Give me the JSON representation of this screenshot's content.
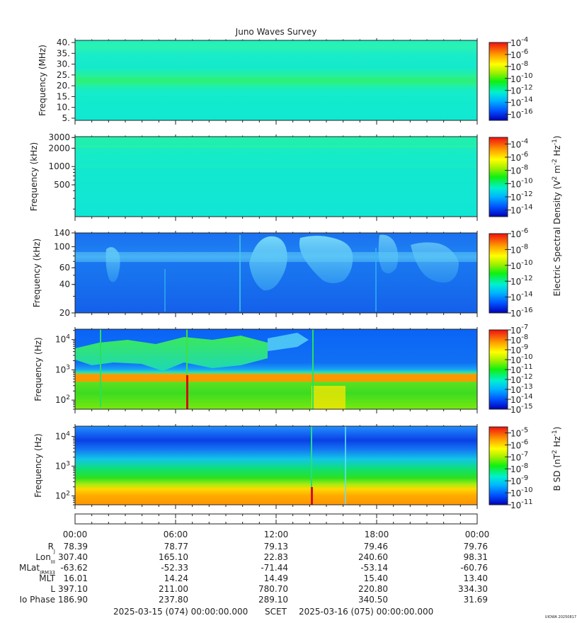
{
  "chart_data": {
    "type": "heatmap",
    "title": "Juno Waves Survey",
    "time_axis": {
      "tick_labels": [
        "00:00",
        "06:00",
        "12:00",
        "18:00",
        "00:00"
      ],
      "range_hours": [
        0,
        24
      ],
      "minor_tick_hours": 1
    },
    "panels": [
      {
        "id": "hfr-mhz",
        "ylabel": "Frequency (MHz)",
        "scale": "linear",
        "ylim": [
          4,
          41
        ],
        "y_ticks": [
          {
            "v": 5,
            "t": "5."
          },
          {
            "v": 10,
            "t": "10."
          },
          {
            "v": 15,
            "t": "15."
          },
          {
            "v": 20,
            "t": "20."
          },
          {
            "v": 25,
            "t": "25."
          },
          {
            "v": 30,
            "t": "30."
          },
          {
            "v": 35,
            "t": "35."
          },
          {
            "v": 40,
            "t": "40."
          }
        ],
        "colorbar_exponents": [
          "-4",
          "-6",
          "-8",
          "-10",
          "-12",
          "-14",
          "-16"
        ],
        "color_range_exp": [
          -17,
          -4
        ]
      },
      {
        "id": "hfr-khz",
        "ylabel": "Frequency (kHz)",
        "scale": "log",
        "ylim": [
          150,
          3100
        ],
        "y_ticks": [
          {
            "v": 3000,
            "t": "3000"
          },
          {
            "v": 2000,
            "t": "2000"
          },
          {
            "v": 1000,
            "t": "1000"
          },
          {
            "v": 500,
            "t": "500"
          }
        ],
        "colorbar_exponents": [
          "-4",
          "-6",
          "-8",
          "-10",
          "-12",
          "-14"
        ],
        "color_range_exp": [
          -15,
          -3
        ]
      },
      {
        "id": "lfr-khz",
        "ylabel": "Frequency (kHz)",
        "scale": "log",
        "ylim": [
          20,
          140
        ],
        "y_ticks": [
          {
            "v": 140,
            "t": "140"
          },
          {
            "v": 100,
            "t": "100"
          },
          {
            "v": 60,
            "t": "60"
          },
          {
            "v": 40,
            "t": "40"
          },
          {
            "v": 20,
            "t": "20"
          }
        ],
        "colorbar_exponents": [
          "-6",
          "-8",
          "-10",
          "-12",
          "-14",
          "-16"
        ],
        "color_range_exp": [
          -16,
          -6
        ]
      },
      {
        "id": "lfr-hz",
        "ylabel": "Frequency (Hz)",
        "scale": "log",
        "ylim": [
          50,
          22000
        ],
        "y_ticks": [
          {
            "v": 10000,
            "base": "10",
            "exp": "4"
          },
          {
            "v": 1000,
            "base": "10",
            "exp": "3"
          },
          {
            "v": 100,
            "base": "10",
            "exp": "2"
          }
        ],
        "colorbar_exponents": [
          "-7",
          "-8",
          "-9",
          "-10",
          "-11",
          "-12",
          "-13",
          "-14",
          "-15"
        ],
        "color_range_exp": [
          -15,
          -7
        ]
      },
      {
        "id": "bsd-hz",
        "ylabel": "Frequency (Hz)",
        "scale": "log",
        "ylim": [
          50,
          22000
        ],
        "y_ticks": [
          {
            "v": 10000,
            "base": "10",
            "exp": "4"
          },
          {
            "v": 1000,
            "base": "10",
            "exp": "3"
          },
          {
            "v": 100,
            "base": "10",
            "exp": "2"
          }
        ],
        "colorbar_exponents": [
          "-5",
          "-6",
          "-7",
          "-8",
          "-9",
          "-10",
          "-11"
        ],
        "color_range_exp": [
          -11,
          -4.5
        ]
      }
    ],
    "colorbar_base": "10",
    "colorbar_label_electric": {
      "prefix": "Electric Spectral Density (V",
      "sup1": "2",
      "mid": " m",
      "sup2": "-2",
      "mid2": " Hz",
      "sup3": "-1",
      "suffix": ")"
    },
    "colorbar_label_magnetic": {
      "prefix": "B SD (nT",
      "sup1": "2",
      "mid": " Hz",
      "sup2": "-1",
      "suffix": ")"
    },
    "ephemeris": {
      "row_labels": [
        {
          "main": "R",
          "sub": "J"
        },
        {
          "main": "Lon",
          "sub": "III"
        },
        {
          "main": "MLat",
          "sub": "JRM33"
        },
        {
          "main": "MLT",
          "sub": ""
        },
        {
          "main": "L",
          "sub": ""
        },
        {
          "main": "Io Phase",
          "sub": ""
        }
      ],
      "columns": [
        [
          "78.39",
          "307.40",
          "-63.62",
          "16.01",
          "397.10",
          "186.90"
        ],
        [
          "78.77",
          "165.10",
          "-52.33",
          "14.24",
          "211.00",
          "237.80"
        ],
        [
          "79.13",
          "22.83",
          "-71.44",
          "14.49",
          "780.70",
          "289.10"
        ],
        [
          "79.46",
          "240.60",
          "-53.14",
          "15.40",
          "220.80",
          "340.50"
        ],
        [
          "79.76",
          "98.31",
          "-60.76",
          "13.40",
          "334.30",
          "31.69"
        ]
      ]
    },
    "footer": {
      "start": "2025-03-15 (074) 00:00:00.000",
      "scet": "SCET",
      "end": "2025-03-16 (075) 00:00:00.000",
      "credit": "UIOWA 20250817"
    }
  }
}
